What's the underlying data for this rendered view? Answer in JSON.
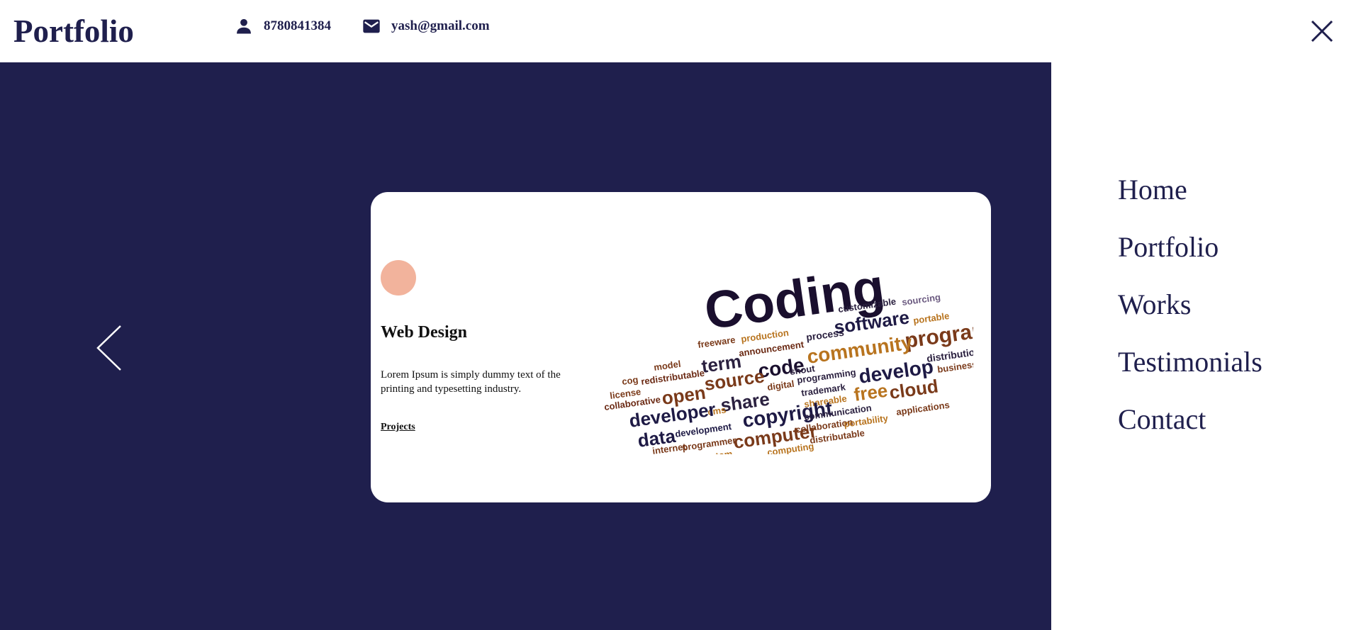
{
  "header": {
    "brand": "Portfolio",
    "phone": "8780841384",
    "email": "yash@gmail.com",
    "phone_icon": "person-icon",
    "email_icon": "mail-icon",
    "close_icon": "close-icon"
  },
  "slider": {
    "prev_icon": "chevron-left-icon",
    "card": {
      "title": "Web Design",
      "description": "Lorem Ipsum is simply dummy text of the printing and typesetting industry.",
      "link_label": "Projects"
    },
    "word_cloud": {
      "main_word": "Coding",
      "words": [
        "customizable",
        "sourcing",
        "software",
        "portable",
        "program",
        "freeware",
        "production",
        "process",
        "community",
        "distribution",
        "business",
        "announcement",
        "model",
        "term",
        "code",
        "shout",
        "develop",
        "cog",
        "redistributable",
        "source",
        "digital",
        "programming",
        "license",
        "open",
        "trademark",
        "free",
        "cloud",
        "collaborative",
        "share",
        "shareable",
        "cms",
        "copyright",
        "applications",
        "developer",
        "communication",
        "development",
        "collaboration",
        "portability",
        "data",
        "computer",
        "internet",
        "programmer",
        "distributable",
        "custom",
        "computing"
      ]
    }
  },
  "nav": {
    "items": [
      "Home",
      "Portfolio",
      "Works",
      "Testimonials",
      "Contact"
    ]
  },
  "colors": {
    "navy": "#1f1f4d",
    "accent_dot": "#f2b39c"
  }
}
